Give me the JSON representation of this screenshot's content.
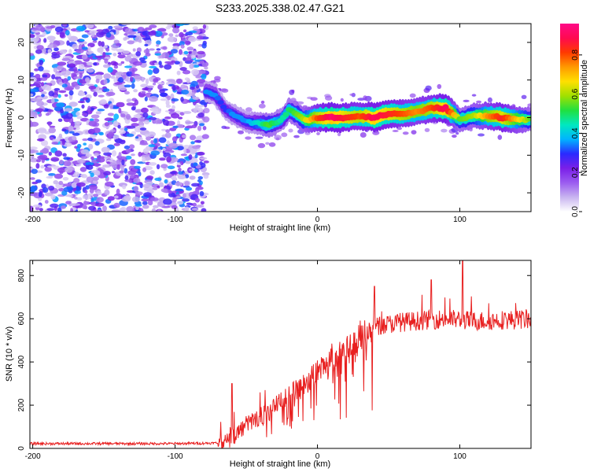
{
  "title": "S233.2025.338.02.47.G21",
  "chart_data": [
    {
      "type": "heatmap",
      "name": "spectrogram",
      "xlabel": "Height of straight line (km)",
      "ylabel": "Frequency (Hz)",
      "xlim": [
        -202,
        150
      ],
      "ylim": [
        -25,
        25
      ],
      "xticks": [
        -200,
        -100,
        0,
        100
      ],
      "yticks": [
        -20,
        -10,
        0,
        10,
        20
      ],
      "colorbar": {
        "label": "Normalized spectral amplitude",
        "range": [
          0,
          0.96
        ],
        "ticks": [
          "0.0",
          "0.2",
          "0.4",
          "0.6",
          "0.8"
        ],
        "colors": [
          "#ffffff",
          "#c8b4f0",
          "#9b5cf0",
          "#7a1fe8",
          "#2a2aff",
          "#00b4ff",
          "#00e8c0",
          "#20e040",
          "#a0e000",
          "#ffe000",
          "#ff9a00",
          "#ff3a00",
          "#ff0a50",
          "#ff0a88"
        ]
      },
      "ridge": {
        "x": [
          -78,
          -72,
          -68,
          -64,
          -60,
          -55,
          -50,
          -45,
          -40,
          -35,
          -30,
          -25,
          -20,
          -15,
          -10,
          -5,
          0,
          10,
          20,
          30,
          40,
          50,
          60,
          70,
          80,
          90,
          95,
          100,
          110,
          120,
          130,
          140,
          150
        ],
        "y": [
          7,
          6,
          4,
          2,
          1,
          0,
          -1,
          -1.5,
          -1.5,
          -2,
          -1.5,
          -0.5,
          2,
          1,
          -0.5,
          -0.5,
          0,
          0,
          0,
          0.5,
          0,
          1,
          1,
          1.5,
          2.5,
          2.5,
          1,
          -0.5,
          0.5,
          0.5,
          0,
          -0.5,
          -0.5
        ],
        "amplitude": [
          0.35,
          0.35,
          0.3,
          0.3,
          0.35,
          0.35,
          0.35,
          0.4,
          0.45,
          0.55,
          0.5,
          0.45,
          0.5,
          0.55,
          0.6,
          0.7,
          0.8,
          0.92,
          0.85,
          0.8,
          0.9,
          0.85,
          0.8,
          0.75,
          0.8,
          0.9,
          0.75,
          0.55,
          0.6,
          0.75,
          0.85,
          0.7,
          0.55
        ]
      },
      "noise_region_x": [
        -202,
        -78
      ]
    },
    {
      "type": "line",
      "name": "snr",
      "xlabel": "Height of straight line (km)",
      "ylabel": "SNR (10 * v/v)",
      "xlim": [
        -202,
        150
      ],
      "ylim": [
        0,
        870
      ],
      "xticks": [
        -200,
        -100,
        0,
        100
      ],
      "yticks": [
        0,
        200,
        400,
        600,
        800
      ],
      "color": "#e82020",
      "envelope": {
        "x": [
          -202,
          -100,
          -70,
          -62,
          -55,
          -50,
          -45,
          -40,
          -35,
          -30,
          -25,
          -20,
          -15,
          -10,
          -5,
          0,
          5,
          10,
          15,
          20,
          25,
          30,
          35,
          40,
          45,
          50,
          60,
          70,
          80,
          90,
          100,
          110,
          120,
          130,
          140,
          150
        ],
        "y": [
          22,
          22,
          25,
          40,
          80,
          110,
          130,
          150,
          170,
          190,
          220,
          250,
          270,
          290,
          320,
          350,
          380,
          410,
          430,
          450,
          480,
          510,
          540,
          560,
          570,
          575,
          585,
          590,
          595,
          600,
          595,
          590,
          590,
          595,
          595,
          600
        ]
      },
      "peaks": [
        {
          "x": -60,
          "y": 300
        },
        {
          "x": 40,
          "y": 750
        },
        {
          "x": 80,
          "y": 780
        },
        {
          "x": 102,
          "y": 870
        }
      ]
    }
  ]
}
